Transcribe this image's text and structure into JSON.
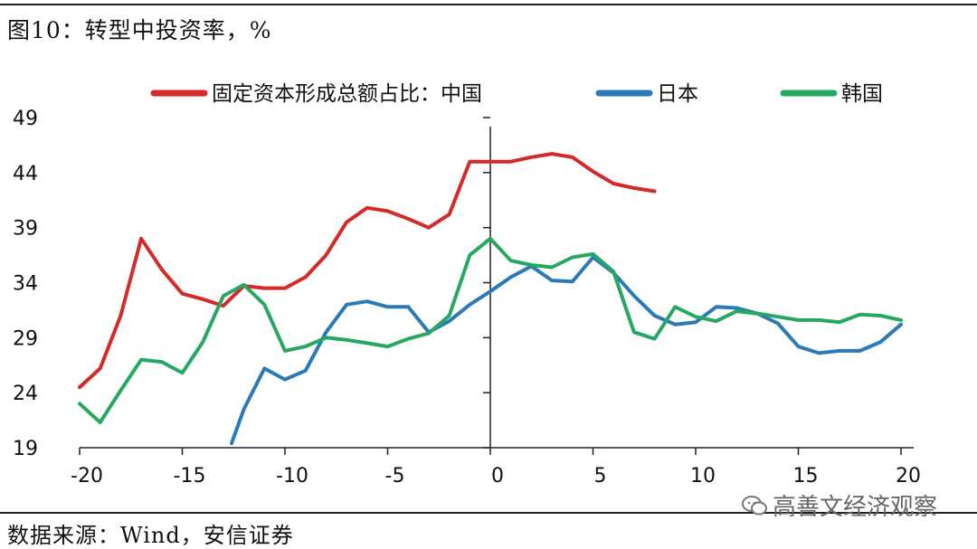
{
  "header": {
    "title": "图10：转型中投资率，%"
  },
  "footer": {
    "source": "数据来源：Wind，安信证券",
    "watermark": "高善文经济观察"
  },
  "chart_data": {
    "type": "line",
    "xlim": [
      -20,
      20
    ],
    "ylim": [
      19,
      49
    ],
    "xticks": [
      -20,
      -15,
      -10,
      -5,
      0,
      5,
      10,
      15,
      20
    ],
    "yticks": [
      19,
      24,
      29,
      34,
      39,
      44,
      49
    ],
    "xtick_labels": [
      "-20",
      "-15",
      "-10",
      "-5",
      "0",
      "5",
      "10",
      "15",
      "20"
    ],
    "ytick_labels": [
      "19",
      "24",
      "29",
      "34",
      "39",
      "44",
      "49"
    ],
    "legend_position": "top",
    "series": [
      {
        "name": "固定资本形成总额占比：中国",
        "color": "#d42a2a",
        "x": [
          -20,
          -19,
          -18,
          -17,
          -16,
          -15,
          -14,
          -13,
          -12,
          -11,
          -10,
          -9,
          -8,
          -7,
          -6,
          -5,
          -4,
          -3,
          -2,
          -1,
          0,
          1,
          2,
          3,
          4,
          5,
          6,
          7,
          8
        ],
        "y": [
          24.5,
          26.2,
          31.0,
          38.0,
          35.2,
          33.0,
          32.5,
          31.9,
          33.7,
          33.5,
          33.5,
          34.5,
          36.5,
          39.5,
          40.8,
          40.5,
          39.8,
          39.0,
          40.2,
          45.0,
          45.0,
          45.0,
          45.4,
          45.7,
          45.4,
          44.1,
          43.0,
          42.6,
          42.3
        ]
      },
      {
        "name": "日本",
        "color": "#2a7ab8",
        "x": [
          -12.6,
          -12,
          -11,
          -10,
          -9,
          -8,
          -7,
          -6,
          -5,
          -4,
          -3,
          -2,
          -1,
          0,
          1,
          2,
          3,
          4,
          5,
          6,
          7,
          8,
          9,
          10,
          11,
          12,
          13,
          14,
          15,
          16,
          17,
          18,
          19,
          20
        ],
        "y": [
          19.4,
          22.5,
          26.2,
          25.2,
          26.0,
          29.5,
          32.0,
          32.3,
          31.8,
          31.8,
          29.5,
          30.5,
          32.0,
          33.2,
          34.5,
          35.5,
          34.2,
          34.1,
          36.3,
          34.9,
          32.8,
          31.0,
          30.2,
          30.4,
          31.8,
          31.7,
          31.2,
          30.3,
          28.2,
          27.6,
          27.8,
          27.8,
          28.6,
          30.2
        ]
      },
      {
        "name": "韩国",
        "color": "#27a862",
        "x": [
          -20,
          -19,
          -18,
          -17,
          -16,
          -15,
          -14,
          -13,
          -12,
          -11,
          -10,
          -9,
          -8,
          -7,
          -6,
          -5,
          -4,
          -3,
          -2,
          -1,
          0,
          1,
          2,
          3,
          4,
          5,
          6,
          7,
          8,
          9,
          10,
          11,
          12,
          13,
          14,
          15,
          16,
          17,
          18,
          19,
          20
        ],
        "y": [
          23.0,
          21.3,
          24.2,
          27.0,
          26.8,
          25.8,
          28.6,
          32.8,
          33.8,
          32.0,
          27.8,
          28.2,
          29.0,
          28.8,
          28.5,
          28.2,
          28.9,
          29.4,
          31.0,
          36.5,
          38.0,
          36.0,
          35.6,
          35.4,
          36.3,
          36.6,
          35.0,
          29.5,
          28.9,
          31.8,
          30.9,
          30.5,
          31.4,
          31.2,
          30.9,
          30.6,
          30.6,
          30.4,
          31.1,
          31.0,
          30.6
        ]
      }
    ]
  }
}
